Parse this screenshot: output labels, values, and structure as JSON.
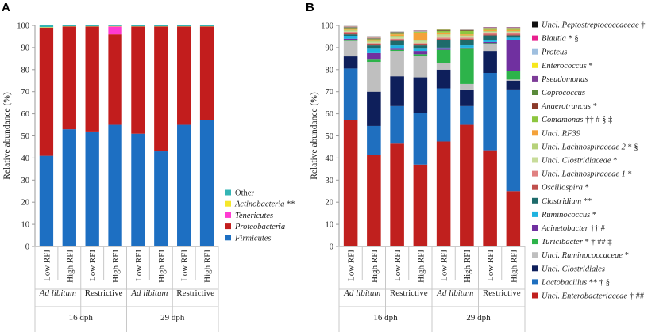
{
  "figure": {
    "colors": {
      "Other": "#33b5b5",
      "Actinobacteria": "#f5e72a",
      "Tenericutes": "#ff3ad2",
      "Proteobacteria": "#c21d1d",
      "Firmicutes": "#1d6fc2",
      "Uncl. Peptostreptococcaceae": "#111111",
      "Blautia": "#e8208e",
      "Proteus": "#9fbfdf",
      "Enterococcus": "#f7e71c",
      "Pseudomonas": "#7d3c98",
      "Coprococcus": "#5a8a3a",
      "Anaerotruncus": "#8b3a2a",
      "Comamonas": "#8dc63f",
      "Uncl. RF39": "#f4a23a",
      "Uncl. Lachnospiraceae 2": "#b7d27a",
      "Uncl. Clostridiaceae": "#c8dc9a",
      "Uncl. Lachnospiraceae 1": "#e08080",
      "Oscillospira": "#c0504d",
      "Clostridium": "#1e6b6b",
      "Ruminococcus": "#1fb3e0",
      "Acinetobacter": "#7030a0",
      "Turicibacter": "#2db34a",
      "Uncl. Ruminococcaceae": "#bfbfbf",
      "Uncl. Clostridiales": "#0e1f5b",
      "Lactobacillus": "#1f6fbf",
      "Uncl. Enterobacteriaceae": "#c0201e"
    }
  },
  "chart_data": [
    {
      "panel": "A",
      "type": "bar",
      "stacked": true,
      "ylabel": "Relative abundance (%)",
      "ylim": [
        0,
        100
      ],
      "yticks": [
        "0",
        "10",
        "20",
        "30",
        "40",
        "50",
        "60",
        "70",
        "80",
        "90",
        "100"
      ],
      "categories": [
        "Low RFI",
        "High RFI",
        "Low RFI",
        "High RFI",
        "Low RFI",
        "High RFI",
        "Low RFI",
        "High RFI"
      ],
      "diets": [
        "Ad libitum",
        "Restrictive",
        "Ad libitum",
        "Restrictive"
      ],
      "ages": [
        "16 dph",
        "29 dph"
      ],
      "series": [
        {
          "name": "Firmicutes",
          "values": [
            41,
            53,
            52,
            55,
            51,
            43,
            55,
            57
          ]
        },
        {
          "name": "Proteobacteria",
          "values": [
            58,
            46.5,
            47.5,
            41,
            48.5,
            56.5,
            44.5,
            42.5
          ]
        },
        {
          "name": "Tenericutes",
          "values": [
            0,
            0,
            0,
            3.5,
            0,
            0,
            0,
            0
          ]
        },
        {
          "name": "Actinobacteria",
          "values": [
            0.2,
            0.1,
            0.1,
            0.2,
            0.1,
            0.1,
            0.1,
            0.1
          ]
        },
        {
          "name": "Other",
          "values": [
            0.8,
            0.4,
            0.4,
            0.3,
            0.4,
            0.4,
            0.4,
            0.4
          ]
        }
      ],
      "legend": [
        {
          "key": "Other",
          "label": "Other",
          "suffix": ""
        },
        {
          "key": "Actinobacteria",
          "label": "Actinobacteria",
          "suffix": " **"
        },
        {
          "key": "Tenericutes",
          "label": "Tenericutes",
          "suffix": ""
        },
        {
          "key": "Proteobacteria",
          "label": "Proteobacteria",
          "suffix": ""
        },
        {
          "key": "Firmicutes",
          "label": "Firmicutes",
          "suffix": ""
        }
      ]
    },
    {
      "panel": "B",
      "type": "bar",
      "stacked": true,
      "ylabel": "Relative abundance (%)",
      "ylim": [
        0,
        100
      ],
      "yticks": [
        "0",
        "10",
        "20",
        "30",
        "40",
        "50",
        "60",
        "70",
        "80",
        "90",
        "100"
      ],
      "categories": [
        "Low RFI",
        "High RFI",
        "Low RFI",
        "High RFI",
        "Low RFI",
        "High RFI",
        "Low RFI",
        "High RFI"
      ],
      "diets": [
        "Ad libitum",
        "Restrictive",
        "Ad libitum",
        "Restrictive"
      ],
      "ages": [
        "16 dph",
        "29 dph"
      ],
      "series": [
        {
          "name": "Uncl. Enterobacteriaceae",
          "values": [
            57,
            41.5,
            46.5,
            37,
            47.5,
            55,
            43.5,
            25
          ]
        },
        {
          "name": "Lactobacillus",
          "values": [
            23.5,
            13,
            17,
            23.5,
            24,
            8.5,
            35,
            46
          ]
        },
        {
          "name": "Uncl. Clostridiales",
          "values": [
            5.5,
            15.5,
            13.5,
            16,
            8.5,
            7.5,
            10,
            4
          ]
        },
        {
          "name": "Uncl. Ruminococcaceae",
          "values": [
            7,
            13.5,
            11.5,
            9.5,
            3,
            2.5,
            3,
            0.5
          ]
        },
        {
          "name": "Turicibacter",
          "values": [
            0.5,
            1,
            0.5,
            1,
            6,
            16,
            0.5,
            4
          ]
        },
        {
          "name": "Acinetobacter",
          "values": [
            0.5,
            3,
            0.5,
            1.5,
            0.5,
            0.5,
            0.5,
            14
          ]
        },
        {
          "name": "Ruminococcus",
          "values": [
            1,
            2,
            1.5,
            1,
            0.5,
            1,
            1,
            1
          ]
        },
        {
          "name": "Clostridium",
          "values": [
            1,
            1.5,
            2,
            1.5,
            3.5,
            2.5,
            2,
            1
          ]
        },
        {
          "name": "Oscillospira",
          "values": [
            0.5,
            0.5,
            0.5,
            0.5,
            0.5,
            0.5,
            0.5,
            0.5
          ]
        },
        {
          "name": "Uncl. Lachnospiraceae 1",
          "values": [
            0.5,
            0.5,
            0.5,
            0.5,
            0.5,
            0.5,
            0.5,
            0.5
          ]
        },
        {
          "name": "Uncl. Clostridiaceae",
          "values": [
            0.5,
            0.5,
            0.5,
            1,
            1,
            0.5,
            0.5,
            0.5
          ]
        },
        {
          "name": "Uncl. Lachnospiraceae 2",
          "values": [
            0.5,
            0.5,
            0.5,
            0.5,
            0.5,
            0.5,
            0.5,
            0.5
          ]
        },
        {
          "name": "Uncl. RF39",
          "values": [
            0.5,
            0.5,
            1,
            3,
            0.5,
            0.5,
            0.5,
            0.5
          ]
        },
        {
          "name": "Comamonas",
          "values": [
            0.3,
            0.3,
            0.3,
            0.3,
            1,
            1.5,
            0.3,
            0.3
          ]
        },
        {
          "name": "Anaerotruncus",
          "values": [
            0.2,
            0.2,
            0.2,
            0.2,
            0.2,
            0.2,
            0.2,
            0.2
          ]
        },
        {
          "name": "Coprococcus",
          "values": [
            0.2,
            0.2,
            0.2,
            0.2,
            0.3,
            0.2,
            0.2,
            0.2
          ]
        },
        {
          "name": "Pseudomonas",
          "values": [
            0.1,
            0.1,
            0.1,
            0.1,
            0.1,
            0.1,
            0.1,
            0.1
          ]
        },
        {
          "name": "Enterococcus",
          "values": [
            0.1,
            0.1,
            0.1,
            0.1,
            0.1,
            0.1,
            0.1,
            0.1
          ]
        },
        {
          "name": "Proteus",
          "values": [
            0.1,
            0.1,
            0.1,
            0.1,
            0.1,
            0.1,
            0.1,
            0.1
          ]
        },
        {
          "name": "Blautia",
          "values": [
            0.1,
            0.1,
            0.1,
            0.1,
            0.1,
            0.1,
            0.1,
            0.1
          ]
        },
        {
          "name": "Uncl. Peptostreptococcaceae",
          "values": [
            0.1,
            0.1,
            0.1,
            0.1,
            0.1,
            0.1,
            0.1,
            0.1
          ]
        }
      ],
      "legend": [
        {
          "key": "Uncl. Peptostreptococcaceae",
          "label": "Uncl. Peptostreptococcaceae",
          "suffix": " †"
        },
        {
          "key": "Blautia",
          "label": "Blautia",
          "suffix": " * §"
        },
        {
          "key": "Proteus",
          "label": "Proteus",
          "suffix": ""
        },
        {
          "key": "Enterococcus",
          "label": "Enterococcus",
          "suffix": " *"
        },
        {
          "key": "Pseudomonas",
          "label": "Pseudomonas",
          "suffix": ""
        },
        {
          "key": "Coprococcus",
          "label": "Coprococcus",
          "suffix": ""
        },
        {
          "key": "Anaerotruncus",
          "label": "Anaerotruncus",
          "suffix": " *"
        },
        {
          "key": "Comamonas",
          "label": "Comamonas",
          "suffix": " †† # § ‡"
        },
        {
          "key": "Uncl. RF39",
          "label": "Uncl. RF39",
          "suffix": ""
        },
        {
          "key": "Uncl. Lachnospiraceae 2",
          "label": "Uncl. Lachnospiraceae 2",
          "suffix": " * §"
        },
        {
          "key": "Uncl. Clostridiaceae",
          "label": "Uncl. Clostridiaceae",
          "suffix": " *"
        },
        {
          "key": "Uncl. Lachnospiraceae 1",
          "label": "Uncl. Lachnospiraceae 1",
          "suffix": " *"
        },
        {
          "key": "Oscillospira",
          "label": "Oscillospira",
          "suffix": " *"
        },
        {
          "key": "Clostridium",
          "label": "Clostridium",
          "suffix": " **"
        },
        {
          "key": "Ruminococcus",
          "label": "Ruminococcus",
          "suffix": " *"
        },
        {
          "key": "Acinetobacter",
          "label": "Acinetobacter",
          "suffix": " †† #"
        },
        {
          "key": "Turicibacter",
          "label": "Turicibacter",
          "suffix": " * † ## ‡"
        },
        {
          "key": "Uncl. Ruminococcaceae",
          "label": "Uncl. Ruminococcaceae",
          "suffix": " *"
        },
        {
          "key": "Uncl. Clostridiales",
          "label": "Uncl. Clostridiales",
          "suffix": ""
        },
        {
          "key": "Lactobacillus",
          "label": "Lactobacillus",
          "suffix": " ** † §"
        },
        {
          "key": "Uncl. Enterobacteriaceae",
          "label": "Uncl. Enterobacteriaceae",
          "suffix": " † ##"
        }
      ]
    }
  ]
}
